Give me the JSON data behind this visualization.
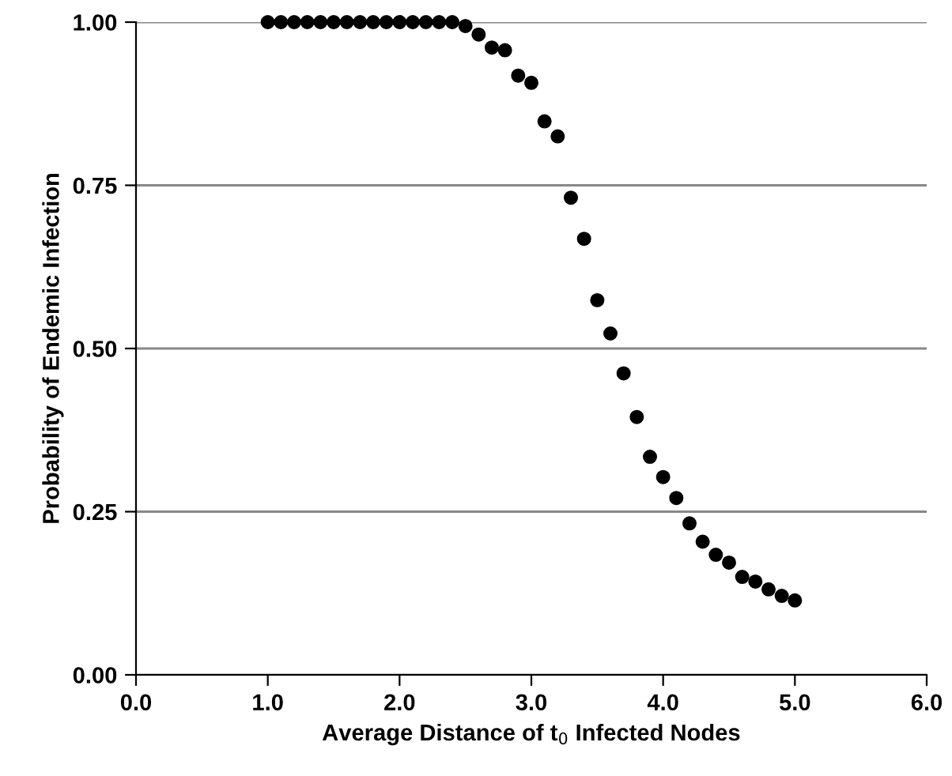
{
  "chart_data": {
    "type": "scatter",
    "xlabel": "Average Distance of t$_{0}$ Infected Nodes",
    "ylabel": "Probability of Endemic Infection",
    "x": [
      1.0,
      1.1,
      1.2,
      1.3,
      1.4,
      1.5,
      1.6,
      1.7,
      1.8,
      1.9,
      2.0,
      2.1,
      2.2,
      2.3,
      2.4,
      2.5,
      2.6,
      2.7,
      2.8,
      2.9,
      3.0,
      3.1,
      3.2,
      3.3,
      3.4,
      3.5,
      3.6,
      3.7,
      3.8,
      3.9,
      4.0,
      4.1,
      4.2,
      4.3,
      4.4,
      4.5,
      4.6,
      4.7,
      4.8,
      4.9,
      5.0
    ],
    "series": [
      {
        "color": "#000000",
        "values": [
          1.0,
          1.0,
          1.0,
          1.0,
          1.0,
          1.0,
          1.0,
          1.0,
          1.0,
          1.0,
          1.0,
          1.0,
          1.0,
          1.0,
          1.0,
          0.994,
          0.981,
          0.961,
          0.957,
          0.918,
          0.907,
          0.848,
          0.825,
          0.731,
          0.668,
          0.574,
          0.523,
          0.462,
          0.395,
          0.334,
          0.303,
          0.271,
          0.232,
          0.204,
          0.184,
          0.172,
          0.15,
          0.143,
          0.131,
          0.121,
          0.114
        ]
      }
    ],
    "xlim": [
      0,
      6
    ],
    "xticks": [
      {
        "value": 0,
        "label": "0.0"
      },
      {
        "value": 1,
        "label": "1.0"
      },
      {
        "value": 2,
        "label": "2.0"
      },
      {
        "value": 3,
        "label": "3.0"
      },
      {
        "value": 4,
        "label": "4.0"
      },
      {
        "value": 5,
        "label": "5.0"
      },
      {
        "value": 6,
        "label": "6.0"
      }
    ],
    "ylim": [
      0,
      1
    ],
    "yticks": [
      {
        "value": 0,
        "label": "0.00"
      },
      {
        "value": 0.25,
        "label": "0.25"
      },
      {
        "value": 0.5,
        "label": "0.50"
      },
      {
        "value": 0.75,
        "label": "0.75"
      },
      {
        "value": 1,
        "label": "1.00"
      }
    ],
    "grid": "y",
    "marker": "circle",
    "legend": false
  }
}
